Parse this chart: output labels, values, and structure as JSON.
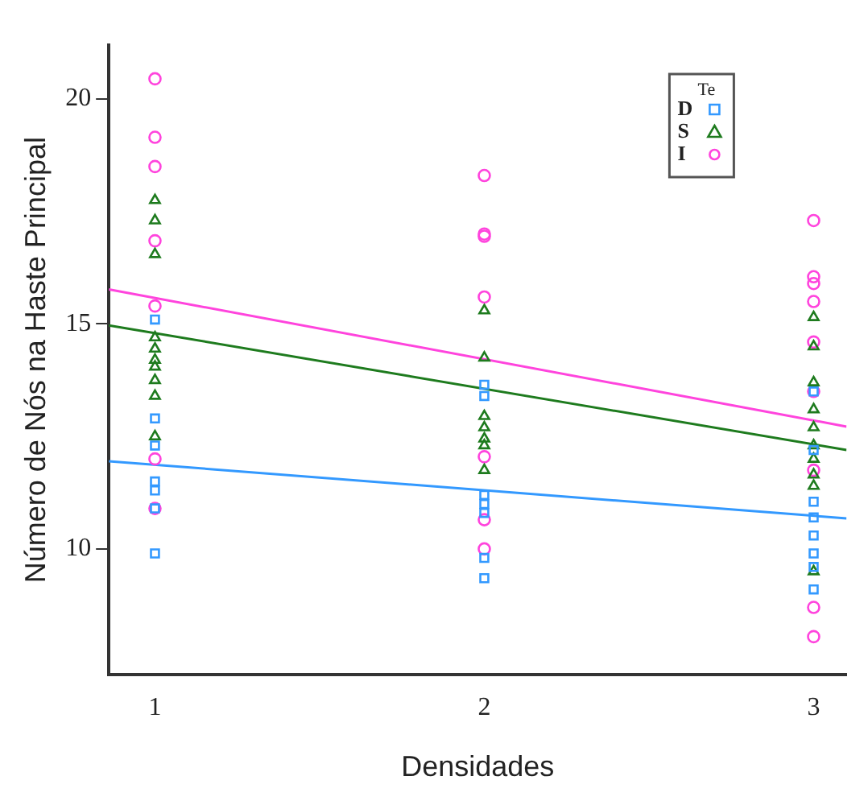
{
  "chart_data": {
    "type": "scatter",
    "xlabel": "Densidades",
    "ylabel": "Número de Nós na Haste Principal",
    "legend_title": "Te",
    "legend": "top right",
    "grid": false,
    "xlim": [
      0.86,
      3.1
    ],
    "xticks": [
      1,
      2,
      3
    ],
    "ylim": [
      7.2,
      21.2
    ],
    "yticks": [
      10,
      15,
      20
    ],
    "series": [
      {
        "name": "D",
        "color": "#3399ff",
        "marker": "square",
        "x": [
          1,
          1,
          1,
          1,
          1,
          1,
          1,
          2,
          2,
          2,
          2,
          2,
          2,
          2,
          3,
          3,
          3,
          3,
          3,
          3,
          3,
          3
        ],
        "values": [
          15.1,
          12.9,
          12.3,
          11.5,
          11.3,
          10.9,
          9.9,
          13.65,
          13.4,
          11.2,
          11.0,
          10.8,
          9.8,
          9.35,
          13.5,
          12.2,
          11.05,
          10.7,
          10.3,
          9.9,
          9.6,
          9.1
        ]
      },
      {
        "name": "S",
        "color": "#1e7b1e",
        "marker": "triangle",
        "x": [
          1,
          1,
          1,
          1,
          1,
          1,
          1,
          1,
          1,
          1,
          2,
          2,
          2,
          2,
          2,
          2,
          2,
          3,
          3,
          3,
          3,
          3,
          3,
          3,
          3,
          3,
          3
        ],
        "values": [
          17.75,
          17.3,
          16.55,
          14.7,
          14.45,
          14.2,
          14.05,
          13.75,
          13.4,
          12.5,
          15.3,
          14.25,
          12.95,
          12.7,
          12.45,
          12.3,
          11.75,
          15.15,
          14.5,
          13.7,
          13.1,
          12.7,
          12.3,
          12.0,
          11.65,
          11.4,
          9.5
        ]
      },
      {
        "name": "I",
        "color": "#ff44dd",
        "marker": "circle",
        "x": [
          1,
          1,
          1,
          1,
          1,
          1,
          1,
          2,
          2,
          2,
          2,
          2,
          2,
          2,
          3,
          3,
          3,
          3,
          3,
          3,
          3,
          3,
          3
        ],
        "values": [
          20.45,
          19.15,
          18.5,
          16.85,
          15.4,
          12.0,
          10.9,
          18.3,
          17.0,
          16.95,
          15.6,
          12.05,
          10.65,
          10.0,
          17.3,
          16.05,
          15.9,
          15.5,
          14.6,
          13.5,
          11.75,
          8.7,
          8.05
        ]
      },
      {
        "type": "line",
        "color": "#3399ff",
        "marker": "none",
        "x": [
          0.86,
          3.1
        ],
        "values": [
          11.95,
          10.68
        ]
      },
      {
        "type": "line",
        "color": "#1e7b1e",
        "marker": "none",
        "x": [
          0.86,
          3.1
        ],
        "values": [
          14.97,
          12.2
        ]
      },
      {
        "type": "line",
        "color": "#ff44dd",
        "marker": "none",
        "x": [
          0.86,
          3.1
        ],
        "values": [
          15.77,
          12.72
        ]
      }
    ]
  }
}
